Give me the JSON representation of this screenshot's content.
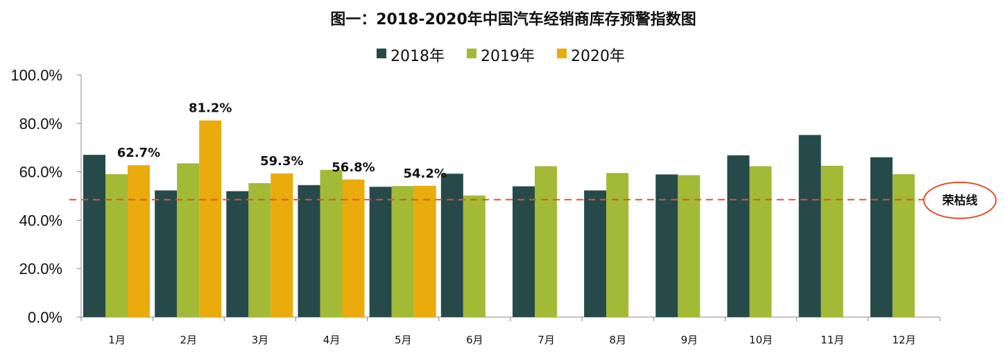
{
  "chart_data": {
    "type": "bar",
    "title": "图一：2018-2020年中国汽车经销商库存预警指数图",
    "categories": [
      "1月",
      "2月",
      "3月",
      "4月",
      "5月",
      "6月",
      "7月",
      "8月",
      "9月",
      "10月",
      "11月",
      "12月"
    ],
    "series": [
      {
        "name": "2018年",
        "color": "#26494A",
        "values": [
          67.0,
          52.3,
          52.0,
          54.5,
          53.8,
          59.2,
          54.0,
          52.3,
          58.9,
          66.8,
          75.2,
          66.0
        ]
      },
      {
        "name": "2019年",
        "color": "#A2BA35",
        "values": [
          59.0,
          63.5,
          55.3,
          60.8,
          54.1,
          50.2,
          62.3,
          59.5,
          58.6,
          62.3,
          62.5,
          59.0
        ]
      },
      {
        "name": "2020年",
        "color": "#EAAB0C",
        "values": [
          62.7,
          81.2,
          59.3,
          56.8,
          54.2,
          null,
          null,
          null,
          null,
          null,
          null,
          null
        ]
      }
    ],
    "data_labels": {
      "series": "2020年",
      "labels": [
        "62.7%",
        "81.2%",
        "59.3%",
        "56.8%",
        "54.2%"
      ]
    },
    "ylim": [
      0,
      100
    ],
    "yticks": [
      0,
      20,
      40,
      60,
      80,
      100
    ],
    "ytick_labels": [
      "0.0%",
      "20.0%",
      "40.0%",
      "60.0%",
      "80.0%",
      "100.0%"
    ],
    "reference_line": {
      "value": 48.5,
      "label": "荣枯线",
      "color": "#E0522A"
    },
    "legend_position": "top-center",
    "xlabel": "",
    "ylabel": ""
  }
}
